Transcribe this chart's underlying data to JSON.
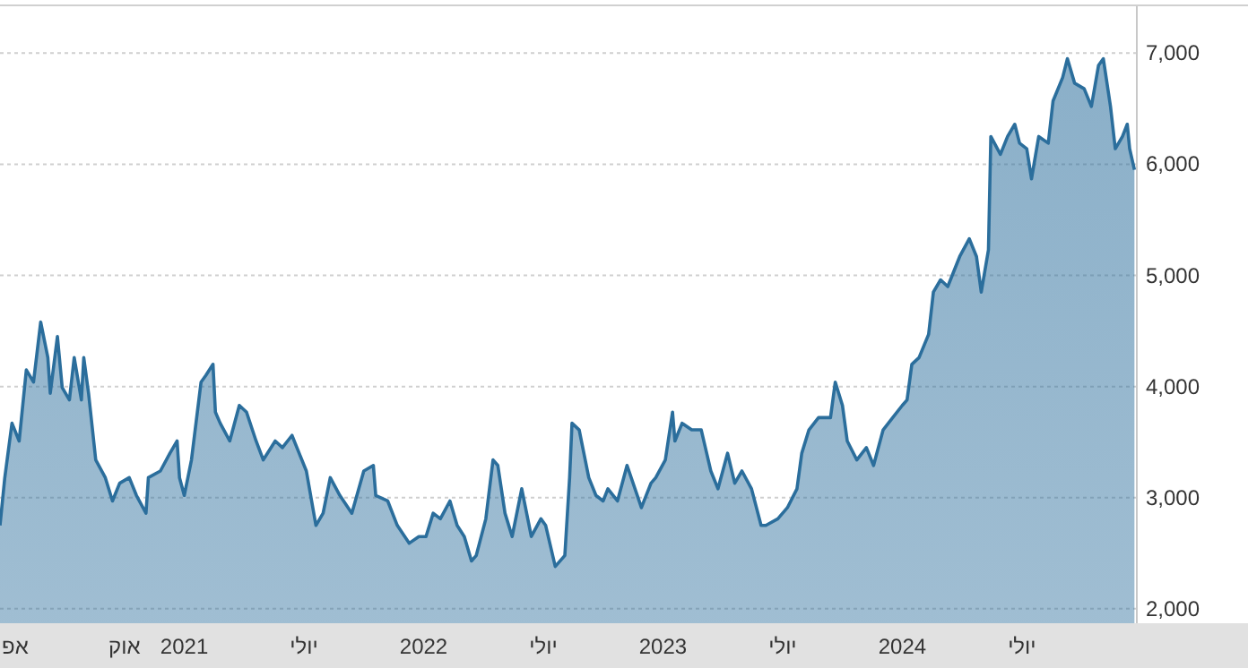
{
  "chart_data": {
    "type": "area",
    "grid": "y",
    "xlim": [
      2020.23,
      2024.98
    ],
    "ylim": [
      1870,
      7430
    ],
    "xticks": [
      {
        "value": 2020.25,
        "label": "אפ"
      },
      {
        "value": 2020.75,
        "label": "אוק"
      },
      2021,
      {
        "value": 2021.5,
        "label": "יולי"
      },
      2022,
      {
        "value": 2022.5,
        "label": "יולי"
      },
      2023,
      {
        "value": 2023.5,
        "label": "יולי"
      },
      2024,
      {
        "value": 2024.5,
        "label": "יולי"
      }
    ],
    "yticks": [
      {
        "value": 2000,
        "label": "2,000"
      },
      {
        "value": 3000,
        "label": "3,000"
      },
      {
        "value": 4000,
        "label": "4,000"
      },
      {
        "value": 5000,
        "label": "5,000"
      },
      {
        "value": 6000,
        "label": "6,000"
      },
      {
        "value": 7000,
        "label": "7,000"
      }
    ],
    "series": [
      {
        "color": "#2b6e9c",
        "x": [
          2020.23,
          2020.25,
          2020.28,
          2020.31,
          2020.34,
          2020.37,
          2020.4,
          2020.43,
          2020.44,
          2020.47,
          2020.49,
          2020.52,
          2020.54,
          2020.57,
          2020.58,
          2020.6,
          2020.63,
          2020.67,
          2020.7,
          2020.73,
          2020.77,
          2020.8,
          2020.84,
          2020.85,
          2020.9,
          2020.94,
          2020.97,
          2020.98,
          2021.0,
          2021.03,
          2021.07,
          2021.09,
          2021.12,
          2021.13,
          2021.15,
          2021.19,
          2021.23,
          2021.26,
          2021.3,
          2021.33,
          2021.38,
          2021.41,
          2021.45,
          2021.48,
          2021.51,
          2021.55,
          2021.58,
          2021.61,
          2021.65,
          2021.7,
          2021.75,
          2021.79,
          2021.8,
          2021.85,
          2021.89,
          2021.94,
          2021.98,
          2022.01,
          2022.04,
          2022.07,
          2022.11,
          2022.14,
          2022.17,
          2022.2,
          2022.22,
          2022.26,
          2022.29,
          2022.31,
          2022.34,
          2022.37,
          2022.41,
          2022.45,
          2022.49,
          2022.51,
          2022.55,
          2022.59,
          2022.61,
          2022.62,
          2022.65,
          2022.69,
          2022.72,
          2022.75,
          2022.77,
          2022.81,
          2022.85,
          2022.91,
          2022.95,
          2022.97,
          2023.01,
          2023.04,
          2023.05,
          2023.08,
          2023.12,
          2023.16,
          2023.2,
          2023.23,
          2023.27,
          2023.3,
          2023.33,
          2023.37,
          2023.41,
          2023.43,
          2023.48,
          2023.52,
          2023.56,
          2023.58,
          2023.61,
          2023.65,
          2023.7,
          2023.72,
          2023.75,
          2023.77,
          2023.81,
          2023.85,
          2023.88,
          2023.92,
          2023.96,
          2024.0,
          2024.02,
          2024.04,
          2024.07,
          2024.11,
          2024.13,
          2024.16,
          2024.19,
          2024.24,
          2024.28,
          2024.31,
          2024.33,
          2024.36,
          2024.37,
          2024.41,
          2024.44,
          2024.47,
          2024.49,
          2024.52,
          2024.54,
          2024.57,
          2024.61,
          2024.63,
          2024.67,
          2024.69,
          2024.72,
          2024.76,
          2024.79,
          2024.82,
          2024.84,
          2024.87,
          2024.89,
          2024.92,
          2024.94,
          2024.95,
          2024.97
        ],
        "values": [
          2750,
          3180,
          3670,
          3510,
          4150,
          4040,
          4580,
          4260,
          3940,
          4450,
          3990,
          3880,
          4260,
          3880,
          4260,
          3940,
          3340,
          3180,
          2970,
          3130,
          3180,
          3020,
          2860,
          3180,
          3240,
          3400,
          3510,
          3180,
          3020,
          3340,
          4040,
          4100,
          4200,
          3770,
          3670,
          3510,
          3830,
          3770,
          3510,
          3340,
          3510,
          3450,
          3560,
          3400,
          3240,
          2750,
          2860,
          3180,
          3020,
          2860,
          3240,
          3290,
          3020,
          2970,
          2750,
          2590,
          2650,
          2650,
          2860,
          2810,
          2970,
          2750,
          2650,
          2430,
          2480,
          2810,
          3340,
          3290,
          2860,
          2650,
          3080,
          2650,
          2810,
          2750,
          2380,
          2480,
          3180,
          3670,
          3610,
          3180,
          3020,
          2970,
          3080,
          2970,
          3290,
          2910,
          3130,
          3180,
          3340,
          3770,
          3510,
          3670,
          3610,
          3610,
          3240,
          3080,
          3400,
          3130,
          3240,
          3080,
          2750,
          2750,
          2810,
          2910,
          3080,
          3400,
          3610,
          3720,
          3720,
          4040,
          3830,
          3510,
          3340,
          3450,
          3290,
          3610,
          3720,
          3830,
          3880,
          4200,
          4260,
          4470,
          4850,
          4960,
          4900,
          5170,
          5330,
          5170,
          4850,
          5230,
          6250,
          6090,
          6250,
          6360,
          6190,
          6140,
          5870,
          6250,
          6190,
          6570,
          6780,
          6950,
          6730,
          6680,
          6520,
          6890,
          6950,
          6520,
          6140,
          6250,
          6360,
          6140,
          5950
        ]
      }
    ]
  }
}
